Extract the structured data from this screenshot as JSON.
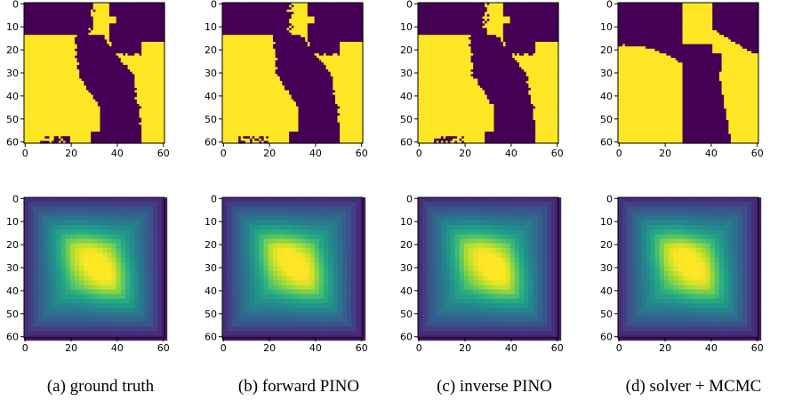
{
  "chart_data": [
    {
      "type": "heatmap",
      "panel": "top",
      "column": 0,
      "colormap": "viridis",
      "value_range": [
        0,
        1
      ],
      "xticks": [
        "0",
        "20",
        "40",
        "60"
      ],
      "yticks": [
        "0",
        "10",
        "20",
        "30",
        "40",
        "50",
        "60"
      ],
      "xlim": [
        0,
        60
      ],
      "ylim": [
        60,
        0
      ],
      "pattern": "binary-permeability-ground-truth"
    },
    {
      "type": "heatmap",
      "panel": "top",
      "column": 1,
      "colormap": "viridis",
      "value_range": [
        0,
        1
      ],
      "xticks": [
        "0",
        "20",
        "40",
        "60"
      ],
      "yticks": [
        "0",
        "10",
        "20",
        "30",
        "40",
        "50",
        "60"
      ],
      "xlim": [
        0,
        60
      ],
      "ylim": [
        60,
        0
      ],
      "pattern": "binary-permeability-forward-pino"
    },
    {
      "type": "heatmap",
      "panel": "top",
      "column": 2,
      "colormap": "viridis",
      "value_range": [
        0,
        1
      ],
      "xticks": [
        "0",
        "20",
        "40",
        "60"
      ],
      "yticks": [
        "0",
        "10",
        "20",
        "30",
        "40",
        "50",
        "60"
      ],
      "xlim": [
        0,
        60
      ],
      "ylim": [
        60,
        0
      ],
      "pattern": "binary-permeability-inverse-pino"
    },
    {
      "type": "heatmap",
      "panel": "top",
      "column": 3,
      "colormap": "viridis",
      "value_range": [
        0,
        1
      ],
      "xticks": [
        "0",
        "20",
        "40",
        "60"
      ],
      "yticks": [
        "0",
        "10",
        "20",
        "30",
        "40",
        "50",
        "60"
      ],
      "xlim": [
        0,
        60
      ],
      "ylim": [
        60,
        0
      ],
      "pattern": "binary-permeability-smooth-mcmc"
    },
    {
      "type": "heatmap",
      "panel": "bottom",
      "column": 0,
      "colormap": "viridis",
      "value_range": [
        0,
        1
      ],
      "xticks": [
        "0",
        "20",
        "40",
        "60"
      ],
      "yticks": [
        "0",
        "10",
        "20",
        "30",
        "40",
        "50",
        "60"
      ],
      "xlim": [
        0,
        60
      ],
      "ylim": [
        60,
        0
      ],
      "pattern": "pressure-field",
      "peak": [
        30,
        32
      ]
    },
    {
      "type": "heatmap",
      "panel": "bottom",
      "column": 1,
      "colormap": "viridis",
      "value_range": [
        0,
        1
      ],
      "xticks": [
        "0",
        "20",
        "40",
        "60"
      ],
      "yticks": [
        "0",
        "10",
        "20",
        "30",
        "40",
        "50",
        "60"
      ],
      "xlim": [
        0,
        60
      ],
      "ylim": [
        60,
        0
      ],
      "pattern": "pressure-field",
      "peak": [
        29,
        31
      ]
    },
    {
      "type": "heatmap",
      "panel": "bottom",
      "column": 2,
      "colormap": "viridis",
      "value_range": [
        0,
        1
      ],
      "xticks": [
        "0",
        "20",
        "40",
        "60"
      ],
      "yticks": [
        "0",
        "10",
        "20",
        "30",
        "40",
        "50",
        "60"
      ],
      "xlim": [
        0,
        60
      ],
      "ylim": [
        60,
        0
      ],
      "pattern": "pressure-field",
      "peak": [
        30,
        32
      ]
    },
    {
      "type": "heatmap",
      "panel": "bottom",
      "column": 3,
      "colormap": "viridis",
      "value_range": [
        0,
        1
      ],
      "xticks": [
        "0",
        "20",
        "40",
        "60"
      ],
      "yticks": [
        "0",
        "10",
        "20",
        "30",
        "40",
        "50",
        "60"
      ],
      "xlim": [
        0,
        60
      ],
      "ylim": [
        60,
        0
      ],
      "pattern": "pressure-field",
      "peak": [
        29,
        31
      ]
    }
  ],
  "captions": [
    "(a) ground truth",
    "(b) forward PINO",
    "(c) inverse PINO",
    "(d) solver + MCMC"
  ],
  "colors": {
    "low": "#440154",
    "high": "#fde725"
  }
}
